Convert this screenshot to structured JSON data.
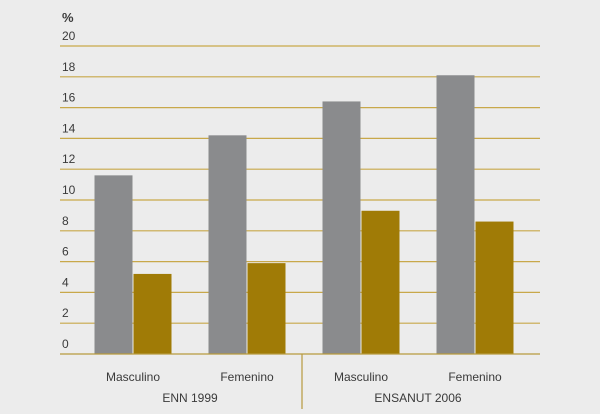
{
  "chart_data": {
    "type": "bar",
    "ylabel": "%",
    "ylim": [
      0,
      20
    ],
    "yticks": [
      0,
      2,
      4,
      6,
      8,
      10,
      12,
      14,
      16,
      18,
      20
    ],
    "grid": true,
    "groups": [
      {
        "label": "ENN 1999",
        "categories": [
          "Masculino",
          "Femenino"
        ]
      },
      {
        "label": "ENSANUT 2006",
        "categories": [
          "Masculino",
          "Femenino"
        ]
      }
    ],
    "categories": [
      "Masculino",
      "Femenino",
      "Masculino",
      "Femenino"
    ],
    "series": [
      {
        "values": [
          11.6,
          14.2,
          16.4,
          18.1
        ]
      },
      {
        "values": [
          5.2,
          5.9,
          9.3,
          8.6
        ]
      }
    ],
    "colors": {
      "series": [
        "#8a8b8d",
        "#a07b06"
      ],
      "gridline": "#c8a84a",
      "axis": "#b79a3e",
      "text": "#3a3a3a",
      "background": "#ececec"
    }
  }
}
